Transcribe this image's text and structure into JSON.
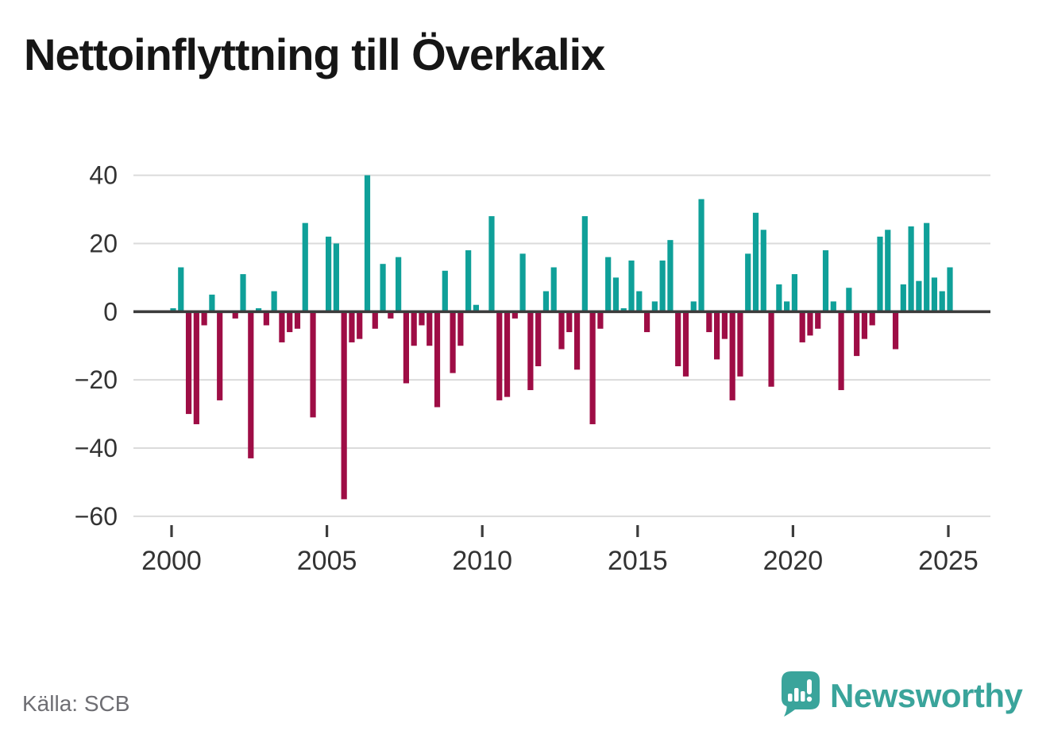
{
  "title": "Nettoinflyttning till Överkalix",
  "source": "Källa: SCB",
  "branding": {
    "logo_text": "Newsworthy",
    "logo_icon": "newsworthy-speech-bubble-barchart-icon",
    "logo_color": "#3aa49b"
  },
  "colors": {
    "positive_bar": "#0fa099",
    "negative_bar": "#9e0d45",
    "gridline": "#dbdbdb",
    "zero_axis": "#3c3c3c",
    "axis_text": "#333333",
    "source_text": "#6e6e73",
    "title_text": "#161616",
    "background": "#ffffff"
  },
  "chart_data": {
    "type": "bar",
    "period": "quarterly",
    "start": "2000 Q1",
    "end": "2025 Q1",
    "title": "Nettoinflyttning till Överkalix",
    "xlabel": "",
    "ylabel": "",
    "ylim": [
      -60,
      40
    ],
    "yticks": [
      40,
      20,
      0,
      -20,
      -40,
      -60
    ],
    "xticks": [
      2000,
      2005,
      2010,
      2015,
      2020,
      2025
    ],
    "grid": true,
    "legend": false,
    "values_by_year": {
      "2000": [
        1,
        13,
        -30,
        -33
      ],
      "2001": [
        -4,
        5,
        -26,
        0
      ],
      "2002": [
        -2,
        11,
        -43,
        1
      ],
      "2003": [
        -4,
        6,
        -9,
        -6
      ],
      "2004": [
        -5,
        26,
        -31,
        0
      ],
      "2005": [
        22,
        20,
        -55,
        -9
      ],
      "2006": [
        -8,
        40,
        -5,
        14
      ],
      "2007": [
        -2,
        16,
        -21,
        -10
      ],
      "2008": [
        -4,
        -10,
        -28,
        12
      ],
      "2009": [
        -18,
        -10,
        18,
        2
      ],
      "2010": [
        0,
        28,
        -26,
        -25
      ],
      "2011": [
        -2,
        17,
        -23,
        -16
      ],
      "2012": [
        6,
        13,
        -11,
        -6
      ],
      "2013": [
        -17,
        28,
        -33,
        -5
      ],
      "2014": [
        16,
        10,
        1,
        15
      ],
      "2015": [
        6,
        -6,
        3,
        15
      ],
      "2016": [
        21,
        -16,
        -19,
        3
      ],
      "2017": [
        33,
        -6,
        -14,
        -8
      ],
      "2018": [
        -26,
        -19,
        17,
        29
      ],
      "2019": [
        24,
        -22,
        8,
        3
      ],
      "2020": [
        11,
        -9,
        -7,
        -5
      ],
      "2021": [
        18,
        3,
        -23,
        7
      ],
      "2022": [
        -13,
        -8,
        -4,
        22
      ],
      "2023": [
        24,
        -11,
        8,
        25
      ],
      "2024": [
        9,
        26,
        10,
        6
      ],
      "2025": [
        13
      ]
    }
  }
}
